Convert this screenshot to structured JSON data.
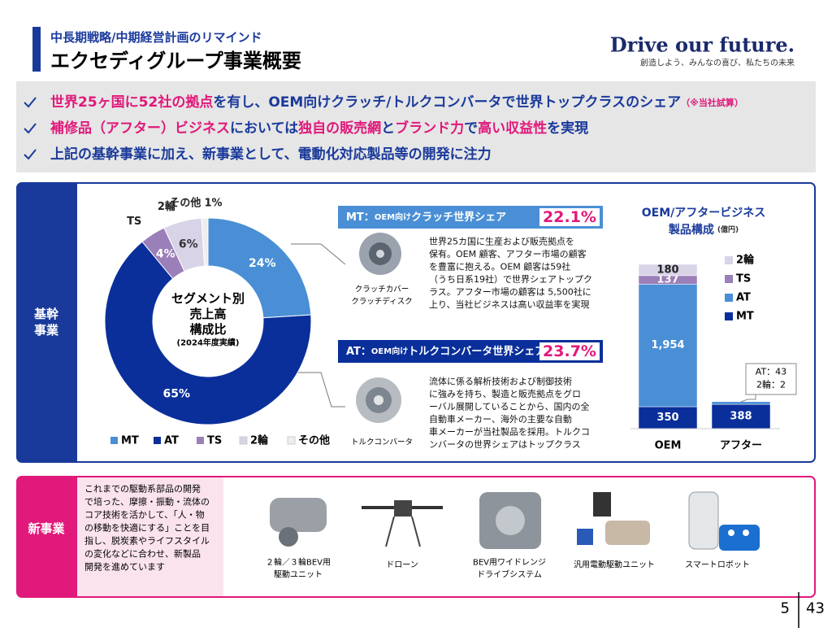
{
  "header": {
    "subtitle": "中長期戦略/中期経営計画のリマインド",
    "title": "エクセディグループ事業概要",
    "brand": "Drive our future.",
    "tagline": "創造しよう、みんなの喜び、私たちの未来"
  },
  "highlights": [
    [
      {
        "text": "世界25ヶ国に52社の拠点",
        "color": "#e0197a"
      },
      {
        "text": "を有し、OEM向けクラッチ/トルクコンバータで世界トップクラスのシェア",
        "color": "#1a3a9b"
      },
      {
        "text": "（※当社試算）",
        "color": "#e0197a",
        "small": true
      }
    ],
    [
      {
        "text": "補修品（アフター）ビジネス",
        "color": "#e0197a"
      },
      {
        "text": "においては",
        "color": "#1a3a9b"
      },
      {
        "text": "独自の販売網",
        "color": "#e0197a"
      },
      {
        "text": "と",
        "color": "#1a3a9b"
      },
      {
        "text": "ブランド力",
        "color": "#e0197a"
      },
      {
        "text": "で",
        "color": "#1a3a9b"
      },
      {
        "text": "高い収益性",
        "color": "#e0197a"
      },
      {
        "text": "を実現",
        "color": "#1a3a9b"
      }
    ],
    [
      {
        "text": "上記の基幹事業に加え、新事業として、電動化対応製品等の開発に注力",
        "color": "#1a3a9b"
      }
    ]
  ],
  "core": {
    "label": "基幹事業",
    "mt": {
      "prefix": "MT：",
      "qualifier": "OEM向け",
      "subject": "クラッチ世界シェア",
      "share": "22.1%",
      "caption": [
        "クラッチカバー",
        "クラッチディスク"
      ],
      "description": [
        "世界25カ国に生産および販売拠点を",
        "保有。OEM 顧客、アフター市場の顧客",
        "を豊富に抱える。OEM 顧客は59社",
        "（うち日系19社）で世界シェアトップク",
        "ラス。アフター市場の顧客は 5,500社に",
        "上り、当社ビジネスは高い収益率を実現"
      ]
    },
    "at": {
      "prefix": "AT：",
      "qualifier": "OEM向け",
      "subject": "トルクコンバータ世界シェア",
      "share": "23.7%",
      "caption": [
        "トルクコンバータ"
      ],
      "description": [
        "流体に係る解析技術および制御技術",
        "に強みを持ち、製造と販売拠点をグロ",
        "ーバル展開していることから、国内の全",
        "自動車メーカー、海外の主要な自動",
        "車メーカーが当社製品を採用。トルクコ",
        "ンバータの世界シェアはトップクラス"
      ]
    }
  },
  "chart_data": [
    {
      "type": "pie",
      "title": [
        "セグメント別",
        "売上高",
        "構成比"
      ],
      "subtitle": "(2024年度実績)",
      "categories": [
        "MT",
        "AT",
        "TS",
        "2輪",
        "その他"
      ],
      "values": [
        24,
        65,
        4,
        6,
        1
      ],
      "value_labels": [
        "24%",
        "65%",
        "4%",
        "6%",
        "1%"
      ],
      "colors": [
        "#4a8fd6",
        "#0a2f9b",
        "#9b7fb8",
        "#d9d3e8",
        "#eeeeee"
      ],
      "legend": "bottom"
    },
    {
      "type": "bar",
      "stacked": true,
      "title": [
        "OEM/アフタービジネス",
        "製品構成"
      ],
      "unit": "(億円)",
      "categories": [
        "OEM",
        "アフター"
      ],
      "series": [
        {
          "name": "MT",
          "color": "#0a2f9b",
          "values": [
            350,
            388
          ]
        },
        {
          "name": "AT",
          "color": "#4a8fd6",
          "values": [
            1954,
            43
          ],
          "value_labels": [
            "1,954",
            null
          ]
        },
        {
          "name": "TS",
          "color": "#9b7fb8",
          "values": [
            137,
            null
          ]
        },
        {
          "name": "2輪",
          "color": "#d9d3e8",
          "values": [
            180,
            2
          ]
        }
      ],
      "annotation": [
        "AT：43",
        "2輪：2"
      ],
      "legend": "right"
    }
  ],
  "new_business": {
    "label": "新事業",
    "description": [
      "これまでの駆動系部品の開発",
      "で培った、摩擦・振動・流体の",
      "コア技術を活かして、「人・物",
      "の移動を快適にする」ことを目",
      "指し、脱炭素やライフスタイル",
      "の変化などに合わせ、新製品",
      "開発を進めています"
    ],
    "items": [
      [
        "２輪／３輪BEV用",
        "駆動ユニット"
      ],
      [
        "ドローン"
      ],
      [
        "BEV用ワイドレンジ",
        "ドライブシステム"
      ],
      [
        "汎用電動駆動ユニット"
      ],
      [
        "スマートロボット"
      ]
    ]
  },
  "footer": {
    "page": "5",
    "total": "43"
  }
}
